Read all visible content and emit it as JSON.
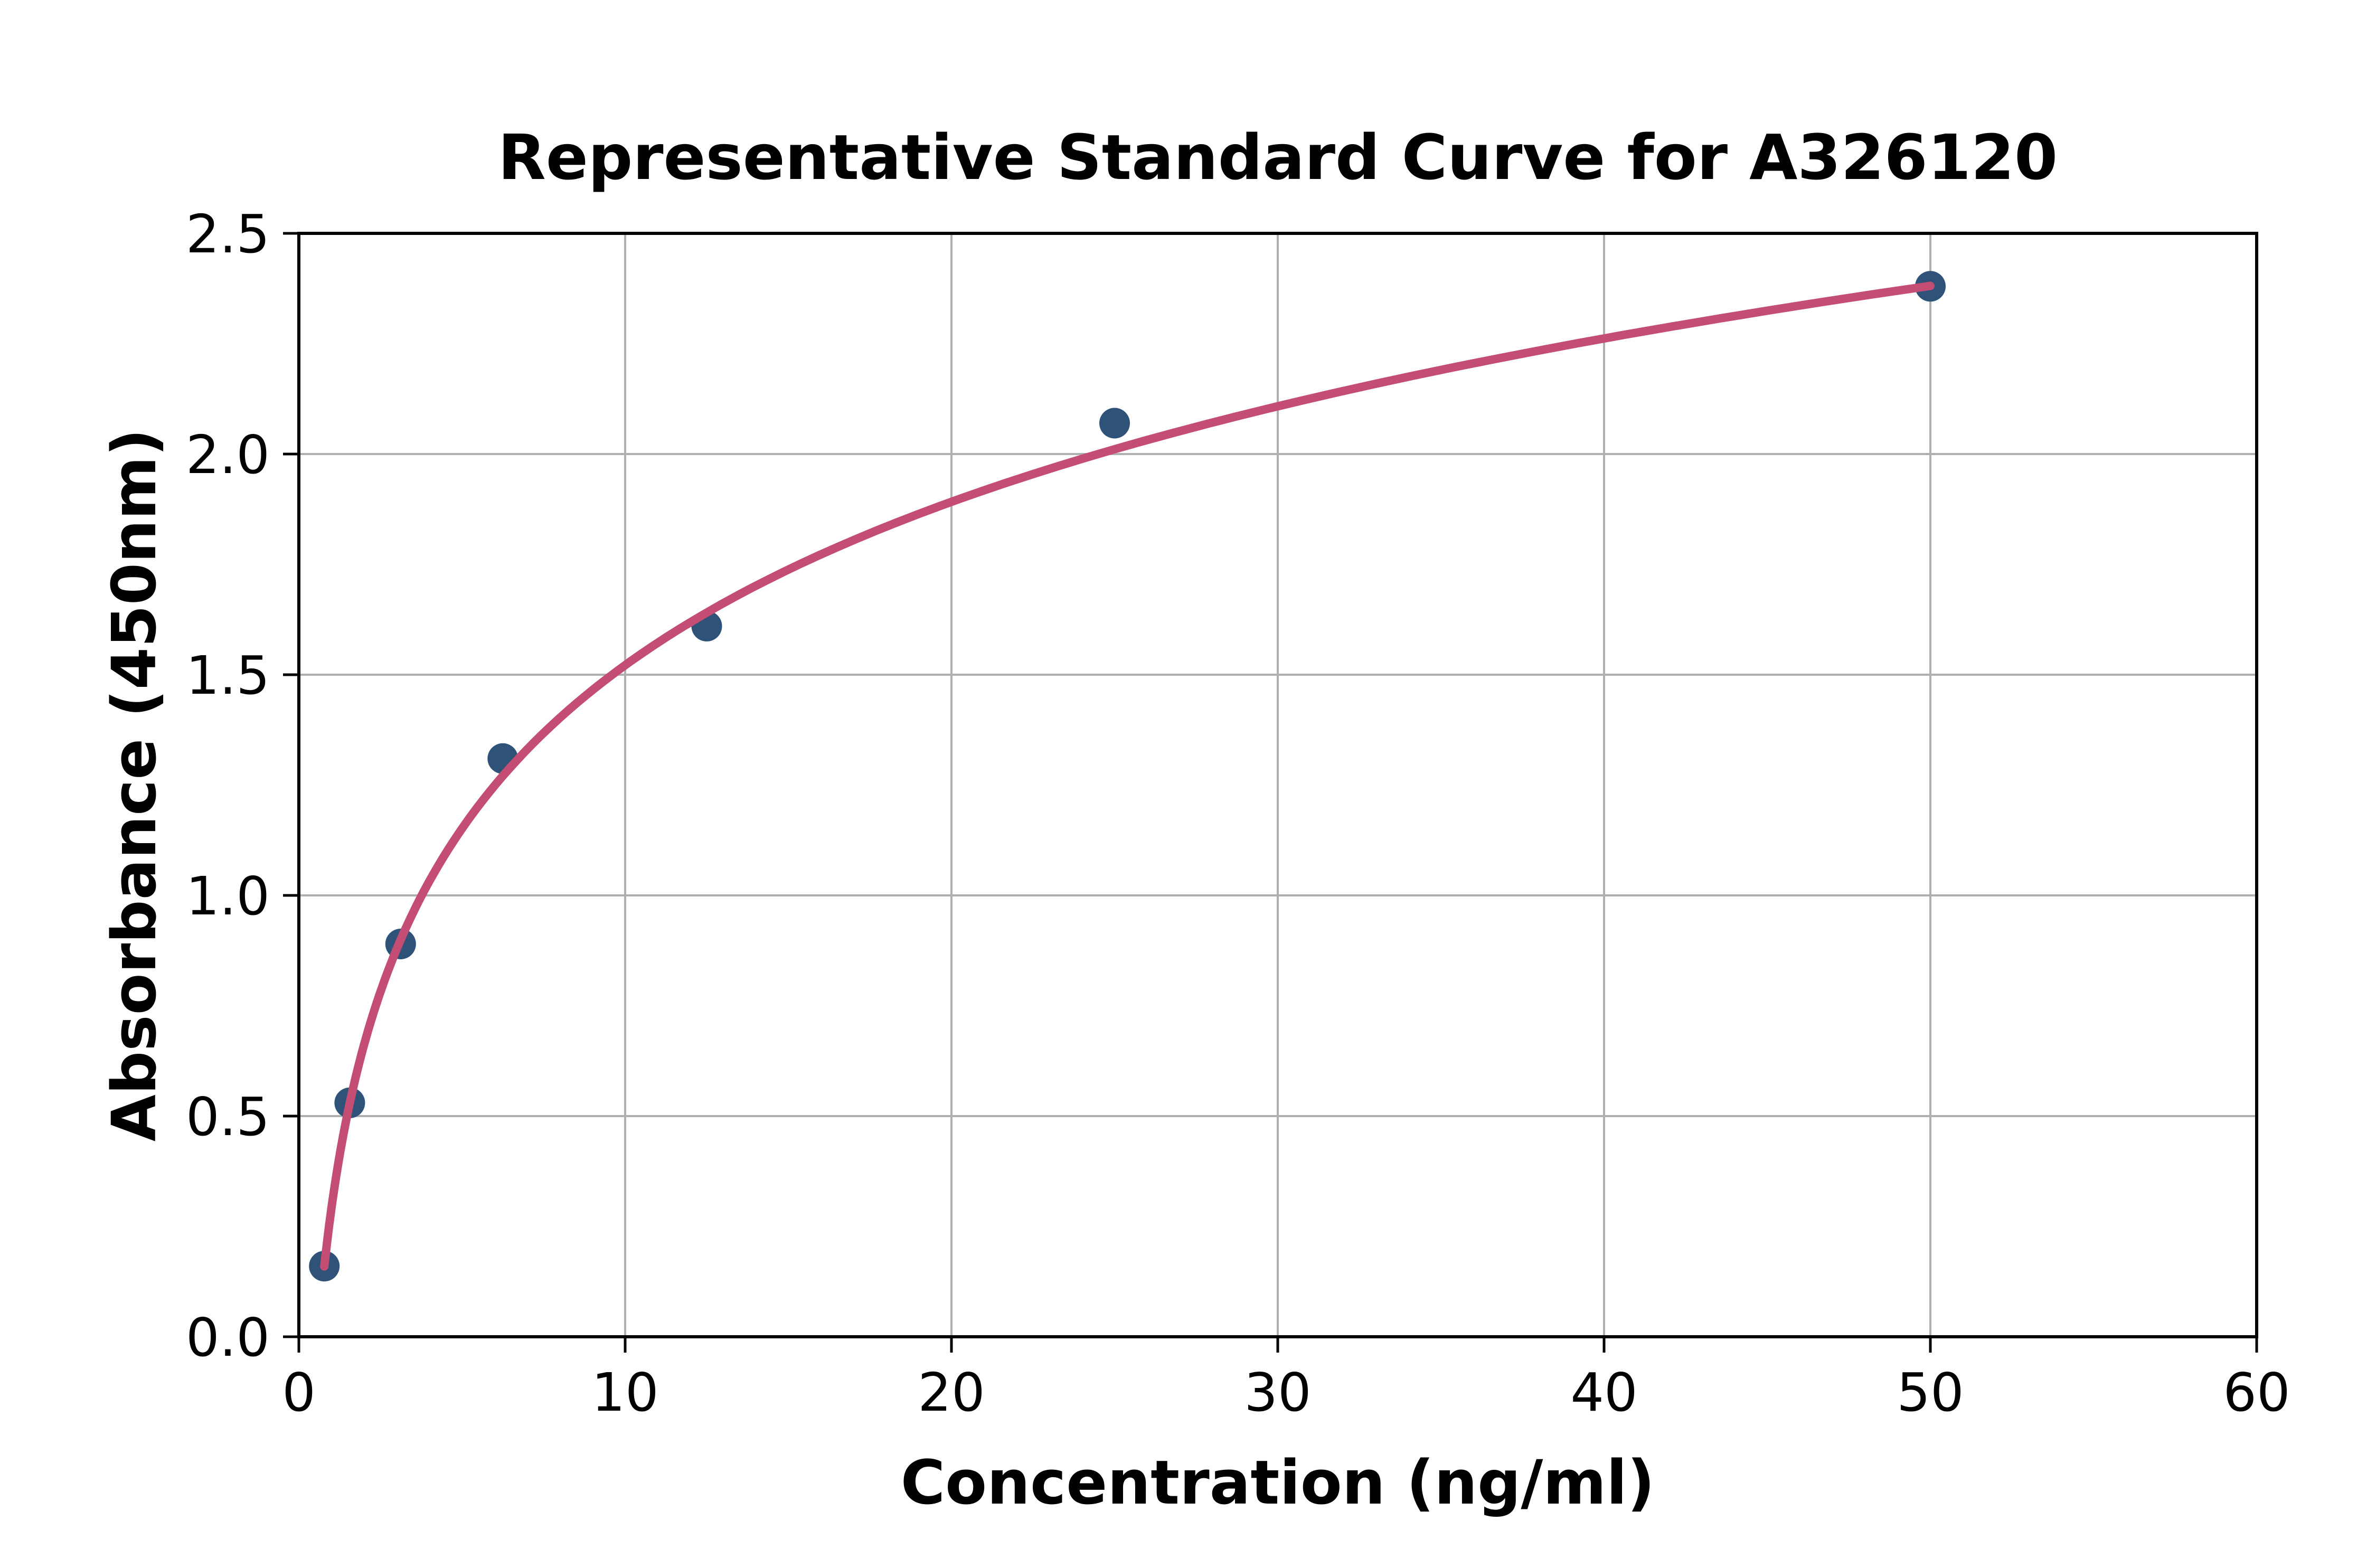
{
  "chart_data": {
    "type": "scatter",
    "title": "Representative Standard Curve for A326120",
    "xlabel": "Concentration (ng/ml)",
    "ylabel": "Absorbance (450nm)",
    "xlim": [
      0,
      60
    ],
    "ylim": [
      0,
      2.5
    ],
    "xticks": [
      0,
      10,
      20,
      30,
      40,
      50,
      60
    ],
    "xtick_labels": [
      "0",
      "10",
      "20",
      "30",
      "40",
      "50",
      "60"
    ],
    "yticks": [
      0.0,
      0.5,
      1.0,
      1.5,
      2.0,
      2.5
    ],
    "ytick_labels": [
      "0.0",
      "0.5",
      "1.0",
      "1.5",
      "2.0",
      "2.5"
    ],
    "grid": true,
    "legend": "none",
    "points": [
      {
        "x": 0.78,
        "y": 0.16
      },
      {
        "x": 1.56,
        "y": 0.53
      },
      {
        "x": 3.12,
        "y": 0.89
      },
      {
        "x": 6.25,
        "y": 1.31
      },
      {
        "x": 12.5,
        "y": 1.61
      },
      {
        "x": 25,
        "y": 2.07
      },
      {
        "x": 50,
        "y": 2.38
      }
    ],
    "fit_curve": {
      "model": "y = a*ln(x) + b",
      "a": 0.534,
      "b": 0.292,
      "x_start": 0.78,
      "x_end": 50
    },
    "colors": {
      "points": "#2F5378",
      "curve": "#C44D73",
      "grid": "#B0B0B0",
      "axes": "#000000",
      "background": "#FFFFFF"
    }
  }
}
